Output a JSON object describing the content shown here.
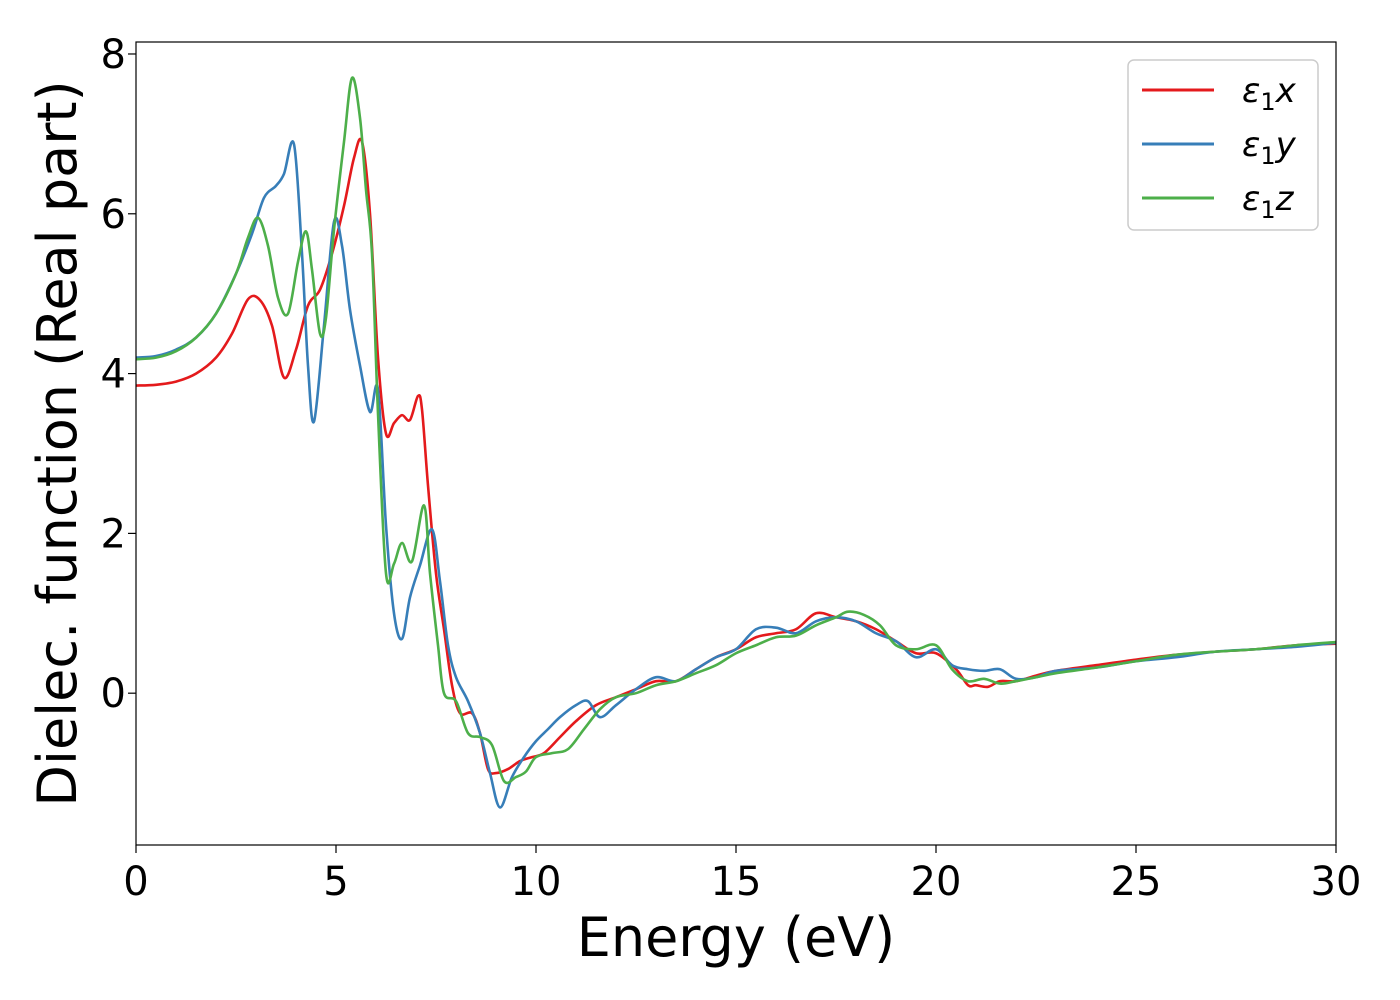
{
  "chart_data": {
    "type": "line",
    "title": "",
    "xlabel": "Energy (eV)",
    "ylabel": "Dielec. function (Real part)",
    "xlim": [
      0,
      30
    ],
    "ylim": [
      -1.9,
      8.15
    ],
    "xticks": [
      0,
      5,
      10,
      15,
      20,
      25,
      30
    ],
    "yticks": [
      0,
      2,
      4,
      6,
      8
    ],
    "grid": false,
    "legend_position": "top-right",
    "series": [
      {
        "name": "ε1x",
        "name_main": "ε",
        "name_sub": "1",
        "name_tail": "x",
        "color": "#e41a1c",
        "x": [
          0,
          0.5,
          1,
          1.5,
          2,
          2.4,
          2.8,
          3.1,
          3.4,
          3.7,
          4.0,
          4.3,
          4.6,
          4.9,
          5.2,
          5.45,
          5.65,
          5.85,
          6.05,
          6.25,
          6.45,
          6.65,
          6.85,
          7.05,
          7.15,
          7.3,
          7.5,
          7.7,
          7.9,
          8.1,
          8.4,
          8.6,
          8.8,
          9.0,
          9.3,
          9.6,
          9.9,
          10.2,
          10.6,
          11,
          11.5,
          12,
          12.5,
          13,
          13.5,
          14,
          14.5,
          15,
          15.5,
          16,
          16.5,
          17,
          17.5,
          18,
          18.5,
          19,
          19.5,
          20,
          20.5,
          20.8,
          21,
          21.3,
          21.6,
          22,
          22.5,
          23,
          24,
          25,
          26,
          27,
          28,
          29,
          30
        ],
        "y": [
          3.85,
          3.86,
          3.9,
          4.0,
          4.2,
          4.5,
          4.93,
          4.92,
          4.6,
          3.95,
          4.3,
          4.85,
          5.05,
          5.5,
          6.1,
          6.7,
          6.9,
          6.0,
          4.2,
          3.25,
          3.38,
          3.48,
          3.42,
          3.72,
          3.55,
          2.6,
          1.5,
          0.8,
          0.1,
          -0.25,
          -0.25,
          -0.5,
          -0.95,
          -1.0,
          -0.95,
          -0.85,
          -0.8,
          -0.75,
          -0.55,
          -0.35,
          -0.15,
          -0.05,
          0.05,
          0.15,
          0.15,
          0.3,
          0.45,
          0.55,
          0.7,
          0.75,
          0.8,
          1.0,
          0.95,
          0.9,
          0.8,
          0.65,
          0.5,
          0.5,
          0.3,
          0.1,
          0.1,
          0.08,
          0.15,
          0.15,
          0.22,
          0.28,
          0.35,
          0.42,
          0.48,
          0.52,
          0.55,
          0.6,
          0.62
        ]
      },
      {
        "name": "ε1y",
        "name_main": "ε",
        "name_sub": "1",
        "name_tail": "y",
        "color": "#377eb8",
        "x": [
          0,
          0.5,
          1,
          1.5,
          2,
          2.5,
          2.9,
          3.2,
          3.5,
          3.7,
          3.95,
          4.15,
          4.3,
          4.45,
          4.7,
          4.95,
          5.15,
          5.35,
          5.6,
          5.85,
          6.05,
          6.25,
          6.45,
          6.65,
          6.85,
          7.1,
          7.4,
          7.6,
          7.8,
          8.0,
          8.3,
          8.6,
          8.85,
          9.1,
          9.4,
          9.7,
          10.0,
          10.3,
          10.6,
          11.0,
          11.3,
          11.6,
          12,
          12.5,
          13,
          13.5,
          14,
          14.5,
          15,
          15.5,
          16,
          16.5,
          17,
          17.5,
          18,
          18.5,
          19,
          19.5,
          20,
          20.4,
          20.8,
          21.2,
          21.6,
          22,
          22.5,
          23,
          24,
          25,
          26,
          27,
          28,
          29,
          30
        ],
        "y": [
          4.2,
          4.22,
          4.3,
          4.45,
          4.75,
          5.25,
          5.75,
          6.2,
          6.35,
          6.5,
          6.87,
          5.5,
          4.1,
          3.4,
          4.6,
          5.9,
          5.6,
          4.8,
          4.1,
          3.52,
          3.8,
          2.1,
          1.0,
          0.68,
          1.2,
          1.6,
          2.05,
          1.4,
          0.6,
          0.2,
          -0.1,
          -0.5,
          -1.0,
          -1.43,
          -1.05,
          -0.8,
          -0.6,
          -0.45,
          -0.3,
          -0.15,
          -0.1,
          -0.3,
          -0.15,
          0.05,
          0.2,
          0.15,
          0.3,
          0.45,
          0.55,
          0.8,
          0.82,
          0.75,
          0.9,
          0.95,
          0.9,
          0.75,
          0.65,
          0.45,
          0.55,
          0.35,
          0.3,
          0.28,
          0.3,
          0.18,
          0.2,
          0.28,
          0.32,
          0.4,
          0.45,
          0.52,
          0.55,
          0.58,
          0.63
        ]
      },
      {
        "name": "ε1z",
        "name_main": "ε",
        "name_sub": "1",
        "name_tail": "z",
        "color": "#4daf4a",
        "x": [
          0,
          0.5,
          1,
          1.5,
          2,
          2.5,
          2.8,
          3.05,
          3.3,
          3.55,
          3.8,
          4.05,
          4.25,
          4.4,
          4.6,
          4.75,
          4.95,
          5.2,
          5.4,
          5.6,
          5.75,
          5.9,
          6.05,
          6.25,
          6.45,
          6.65,
          6.9,
          7.2,
          7.35,
          7.55,
          7.7,
          8.0,
          8.3,
          8.6,
          8.9,
          9.2,
          9.5,
          9.75,
          10.0,
          10.4,
          10.8,
          11.2,
          11.6,
          12,
          12.5,
          13,
          13.5,
          14,
          14.5,
          15,
          15.5,
          16,
          16.5,
          17,
          17.5,
          17.8,
          18.2,
          18.6,
          19,
          19.5,
          20,
          20.4,
          20.8,
          21.2,
          21.6,
          22,
          22.5,
          23,
          24,
          25,
          26,
          27,
          28,
          29,
          30
        ],
        "y": [
          4.18,
          4.2,
          4.28,
          4.45,
          4.75,
          5.25,
          5.7,
          5.95,
          5.6,
          4.95,
          4.75,
          5.4,
          5.78,
          5.3,
          4.5,
          4.7,
          5.8,
          6.9,
          7.7,
          7.2,
          6.3,
          5.5,
          3.5,
          1.5,
          1.62,
          1.88,
          1.65,
          2.35,
          1.5,
          0.6,
          0.0,
          -0.1,
          -0.5,
          -0.55,
          -0.65,
          -1.1,
          -1.05,
          -0.98,
          -0.8,
          -0.75,
          -0.7,
          -0.45,
          -0.2,
          -0.05,
          0.0,
          0.1,
          0.15,
          0.25,
          0.35,
          0.5,
          0.6,
          0.7,
          0.72,
          0.85,
          0.95,
          1.02,
          0.98,
          0.85,
          0.6,
          0.55,
          0.6,
          0.3,
          0.15,
          0.18,
          0.12,
          0.15,
          0.2,
          0.25,
          0.32,
          0.4,
          0.48,
          0.52,
          0.55,
          0.6,
          0.64
        ]
      }
    ]
  }
}
